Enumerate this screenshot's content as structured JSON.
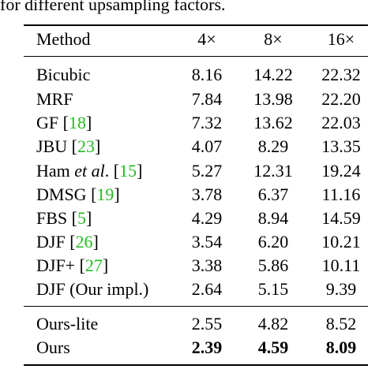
{
  "caption": "for different upsampling factors.",
  "table": {
    "headers": {
      "method": "Method",
      "f4": "4×",
      "f8": "8×",
      "f16": "16×"
    },
    "rows": [
      {
        "name": "Bicubic",
        "cite": "",
        "v4": "8.16",
        "v8": "14.22",
        "v16": "22.32"
      },
      {
        "name": "MRF",
        "cite": "",
        "v4": "7.84",
        "v8": "13.98",
        "v16": "22.20"
      },
      {
        "name": "GF ",
        "cite": "18",
        "v4": "7.32",
        "v8": "13.62",
        "v16": "22.03"
      },
      {
        "name": "JBU ",
        "cite": "23",
        "v4": "4.07",
        "v8": "8.29",
        "v16": "13.35"
      },
      {
        "name": "Ham ",
        "name_italic": "et al",
        "name_post": ". ",
        "cite": "15",
        "v4": "5.27",
        "v8": "12.31",
        "v16": "19.24"
      },
      {
        "name": "DMSG ",
        "cite": "19",
        "v4": "3.78",
        "v8": "6.37",
        "v16": "11.16"
      },
      {
        "name": "FBS ",
        "cite": "5",
        "v4": "4.29",
        "v8": "8.94",
        "v16": "14.59"
      },
      {
        "name": "DJF ",
        "cite": "26",
        "v4": "3.54",
        "v8": "6.20",
        "v16": "10.21"
      },
      {
        "name": "DJF+ ",
        "cite": "27",
        "v4": "3.38",
        "v8": "5.86",
        "v16": "10.11"
      },
      {
        "name": "DJF (Our impl.)",
        "cite": "",
        "v4": "2.64",
        "v8": "5.15",
        "v16": "9.39"
      }
    ],
    "ours_rows": [
      {
        "name": "Ours-lite",
        "v4": "2.55",
        "v8": "4.82",
        "v16": "8.52"
      },
      {
        "name": "Ours",
        "v4": "2.39",
        "v8": "4.59",
        "v16": "8.09"
      }
    ],
    "bracket_open": "[",
    "bracket_close": "]"
  }
}
